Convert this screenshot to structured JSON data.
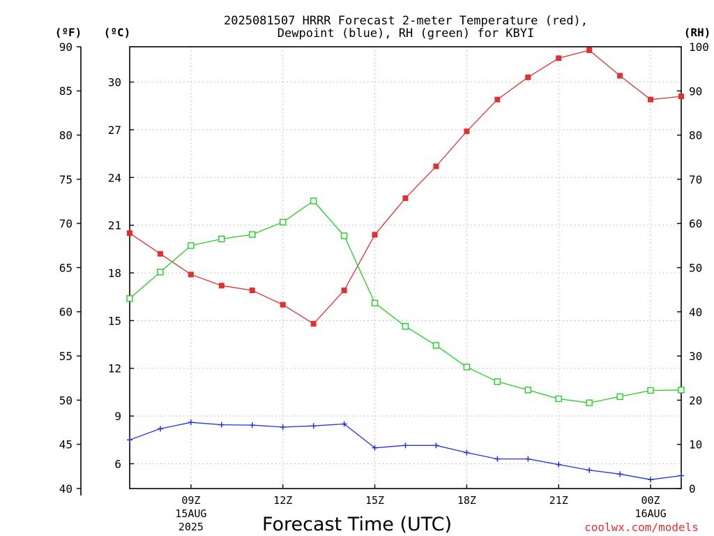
{
  "chart_data": {
    "type": "line",
    "title_line1": "2025081507 HRRR Forecast 2-meter Temperature (red),",
    "title_line2": "Dewpoint (blue), RH (green) for KBYI",
    "left_outer_axis": {
      "unit_label": "(ºF)",
      "ticks": [
        40,
        45,
        50,
        55,
        60,
        65,
        70,
        75,
        80,
        85,
        90
      ]
    },
    "left_inner_axis": {
      "unit_label": "(ºC)",
      "ticks": [
        6,
        9,
        12,
        15,
        18,
        21,
        24,
        27,
        30
      ],
      "ylim": [
        4.44,
        32.22
      ]
    },
    "right_axis": {
      "unit_label": "(RH)",
      "ticks": [
        0,
        10,
        20,
        30,
        40,
        50,
        60,
        70,
        80,
        90,
        100
      ],
      "ylim": [
        0,
        100
      ]
    },
    "xlabel": "Forecast Time (UTC)",
    "x_tick_labels": [
      {
        "hour": 9,
        "lines": [
          "09Z",
          "15AUG",
          "2025"
        ]
      },
      {
        "hour": 12,
        "lines": [
          "12Z"
        ]
      },
      {
        "hour": 15,
        "lines": [
          "15Z"
        ]
      },
      {
        "hour": 18,
        "lines": [
          "18Z"
        ]
      },
      {
        "hour": 21,
        "lines": [
          "21Z"
        ]
      },
      {
        "hour": 24,
        "lines": [
          "00Z",
          "16AUG"
        ]
      }
    ],
    "xlim_hours_utc": [
      7,
      25
    ],
    "x_hours_utc": [
      7,
      8,
      9,
      10,
      11,
      12,
      13,
      14,
      15,
      16,
      17,
      18,
      19,
      20,
      21,
      22,
      23,
      24,
      25
    ],
    "series": [
      {
        "key": "temperature",
        "color": "#e03030",
        "marker": "filled-square",
        "axis": "celsius",
        "values": [
          20.5,
          19.2,
          17.9,
          17.2,
          16.9,
          16.0,
          14.8,
          16.9,
          20.4,
          22.7,
          24.7,
          26.9,
          28.9,
          30.3,
          31.5,
          32.0,
          30.4,
          28.9,
          29.1
        ]
      },
      {
        "key": "dewpoint",
        "color": "#2030e0",
        "marker": "plus",
        "axis": "celsius",
        "values": [
          7.5,
          8.2,
          8.6,
          8.45,
          8.43,
          8.3,
          8.38,
          8.5,
          7.0,
          7.15,
          7.15,
          6.7,
          6.3,
          6.3,
          5.95,
          5.6,
          5.35,
          5.0,
          5.25
        ]
      },
      {
        "key": "rh",
        "color": "#20d020",
        "marker": "open-square",
        "axis": "rh",
        "values": [
          43,
          49,
          55,
          56.5,
          57.5,
          60.3,
          65.1,
          57.2,
          42,
          36.7,
          32.4,
          27.5,
          24.2,
          22.3,
          20.3,
          19.4,
          20.8,
          22.2,
          22.3
        ]
      }
    ],
    "grid": true
  },
  "credit": "coolwx.com/models"
}
